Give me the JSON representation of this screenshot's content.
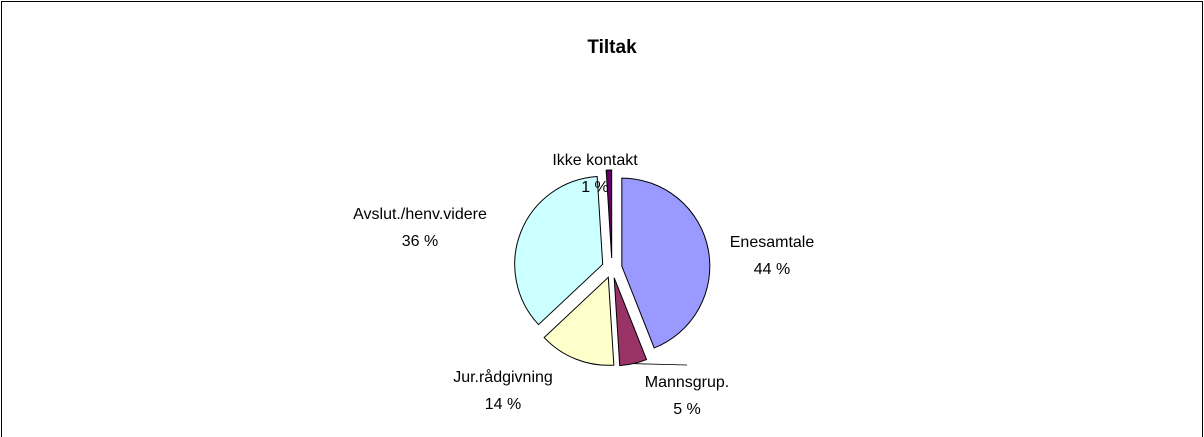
{
  "chart_data": {
    "type": "pie",
    "title": "Tiltak",
    "categories": [
      "Enesamtale",
      "Mannsgrup.",
      "Jur.rådgivning",
      "Avslut./henv.videre",
      "Ikke kontakt"
    ],
    "values": [
      44,
      5,
      14,
      36,
      1
    ],
    "value_labels": [
      "44 %",
      "5 %",
      "14 %",
      "36 %",
      "1 %"
    ],
    "colors": [
      "#9999ff",
      "#993366",
      "#ffffcc",
      "#ccffff",
      "#660066"
    ]
  }
}
